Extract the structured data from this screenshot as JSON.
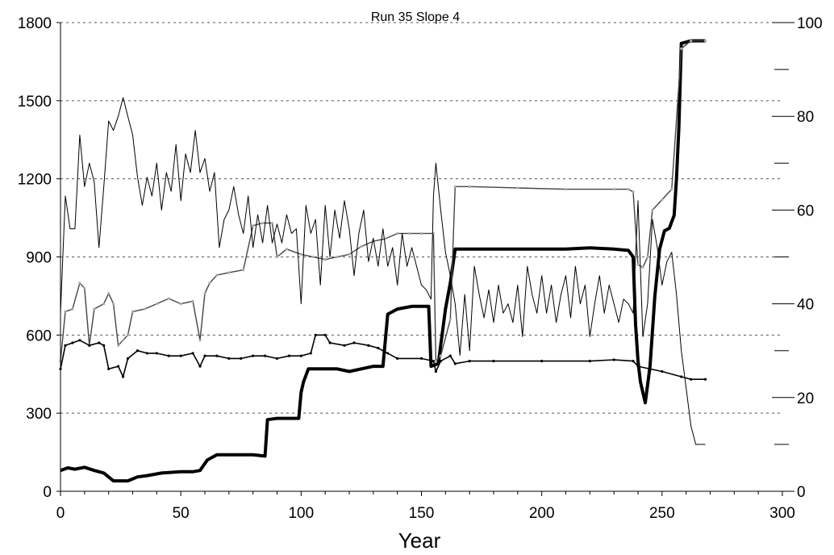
{
  "chart_data": {
    "type": "line",
    "title": "Run 35  Slope 4",
    "xlabel": "Year",
    "ylabel": "",
    "y2label": "",
    "xlim": [
      0,
      300
    ],
    "ylim": [
      0,
      1800
    ],
    "y2lim": [
      0,
      100
    ],
    "x_ticks": [
      "0",
      "50",
      "100",
      "150",
      "200",
      "250",
      "300"
    ],
    "x_tick_values": [
      0,
      50,
      100,
      150,
      200,
      250,
      300
    ],
    "y_ticks": [
      "0",
      "300",
      "600",
      "900",
      "1200",
      "1500",
      "1800"
    ],
    "y_tick_values": [
      0,
      300,
      600,
      900,
      1200,
      1500,
      1800
    ],
    "y2_ticks": [
      "0",
      "20",
      "40",
      "60",
      "80",
      "100"
    ],
    "y2_tick_values": [
      0,
      20,
      40,
      60,
      80,
      100
    ],
    "grid": "horizontal-dashed",
    "series": [
      {
        "axis": "left",
        "style": "thick",
        "points": [
          [
            0,
            80
          ],
          [
            3,
            90
          ],
          [
            6,
            85
          ],
          [
            10,
            92
          ],
          [
            14,
            80
          ],
          [
            18,
            70
          ],
          [
            22,
            40
          ],
          [
            28,
            40
          ],
          [
            32,
            55
          ],
          [
            36,
            60
          ],
          [
            42,
            70
          ],
          [
            50,
            75
          ],
          [
            55,
            75
          ],
          [
            58,
            80
          ],
          [
            61,
            120
          ],
          [
            65,
            140
          ],
          [
            70,
            140
          ],
          [
            75,
            140
          ],
          [
            80,
            140
          ],
          [
            85,
            135
          ],
          [
            86,
            275
          ],
          [
            90,
            280
          ],
          [
            95,
            280
          ],
          [
            99,
            280
          ],
          [
            100,
            380
          ],
          [
            101,
            420
          ],
          [
            103,
            470
          ],
          [
            108,
            470
          ],
          [
            115,
            470
          ],
          [
            120,
            460
          ],
          [
            125,
            470
          ],
          [
            130,
            480
          ],
          [
            134,
            480
          ],
          [
            136,
            680
          ],
          [
            140,
            700
          ],
          [
            146,
            710
          ],
          [
            150,
            710
          ],
          [
            153,
            710
          ],
          [
            154,
            480
          ],
          [
            157,
            490
          ],
          [
            160,
            700
          ],
          [
            162,
            800
          ],
          [
            164,
            930
          ],
          [
            168,
            930
          ],
          [
            180,
            930
          ],
          [
            190,
            930
          ],
          [
            200,
            930
          ],
          [
            210,
            930
          ],
          [
            220,
            935
          ],
          [
            230,
            930
          ],
          [
            236,
            925
          ],
          [
            238,
            900
          ],
          [
            239,
            640
          ],
          [
            240,
            500
          ],
          [
            241,
            420
          ],
          [
            243,
            340
          ],
          [
            245,
            480
          ],
          [
            247,
            750
          ],
          [
            249,
            930
          ],
          [
            251,
            1000
          ],
          [
            253,
            1010
          ],
          [
            255,
            1060
          ],
          [
            256,
            1200
          ],
          [
            257,
            1400
          ],
          [
            258,
            1720
          ],
          [
            262,
            1730
          ],
          [
            268,
            1730
          ]
        ]
      },
      {
        "axis": "left",
        "style": "thin",
        "points": [
          [
            0,
            500
          ],
          [
            2,
            690
          ],
          [
            5,
            700
          ],
          [
            8,
            800
          ],
          [
            10,
            780
          ],
          [
            12,
            560
          ],
          [
            14,
            700
          ],
          [
            18,
            720
          ],
          [
            20,
            760
          ],
          [
            22,
            720
          ],
          [
            24,
            560
          ],
          [
            26,
            580
          ],
          [
            28,
            600
          ],
          [
            30,
            690
          ],
          [
            35,
            700
          ],
          [
            40,
            720
          ],
          [
            45,
            740
          ],
          [
            50,
            720
          ],
          [
            55,
            730
          ],
          [
            58,
            580
          ],
          [
            60,
            760
          ],
          [
            62,
            800
          ],
          [
            65,
            830
          ],
          [
            70,
            840
          ],
          [
            76,
            850
          ],
          [
            80,
            1020
          ],
          [
            84,
            1030
          ],
          [
            88,
            1030
          ],
          [
            90,
            900
          ],
          [
            94,
            930
          ],
          [
            100,
            910
          ],
          [
            105,
            900
          ],
          [
            110,
            890
          ],
          [
            115,
            900
          ],
          [
            120,
            910
          ],
          [
            125,
            940
          ],
          [
            130,
            960
          ],
          [
            135,
            970
          ],
          [
            140,
            990
          ],
          [
            145,
            990
          ],
          [
            150,
            990
          ],
          [
            155,
            990
          ],
          [
            156,
            500
          ],
          [
            158,
            520
          ],
          [
            162,
            660
          ],
          [
            164,
            1170
          ],
          [
            170,
            1170
          ],
          [
            190,
            1165
          ],
          [
            210,
            1160
          ],
          [
            230,
            1160
          ],
          [
            236,
            1160
          ],
          [
            238,
            1150
          ],
          [
            240,
            870
          ],
          [
            242,
            860
          ],
          [
            244,
            900
          ],
          [
            246,
            1080
          ],
          [
            250,
            1120
          ],
          [
            254,
            1160
          ],
          [
            258,
            1700
          ],
          [
            262,
            1730
          ],
          [
            268,
            1730
          ]
        ]
      },
      {
        "axis": "left",
        "style": "thin-markers",
        "points": [
          [
            0,
            470
          ],
          [
            2,
            560
          ],
          [
            5,
            570
          ],
          [
            8,
            580
          ],
          [
            12,
            560
          ],
          [
            16,
            570
          ],
          [
            18,
            560
          ],
          [
            20,
            470
          ],
          [
            24,
            480
          ],
          [
            26,
            440
          ],
          [
            28,
            510
          ],
          [
            32,
            540
          ],
          [
            36,
            530
          ],
          [
            40,
            530
          ],
          [
            45,
            520
          ],
          [
            50,
            520
          ],
          [
            55,
            530
          ],
          [
            58,
            480
          ],
          [
            60,
            520
          ],
          [
            65,
            520
          ],
          [
            70,
            510
          ],
          [
            75,
            510
          ],
          [
            80,
            520
          ],
          [
            85,
            520
          ],
          [
            90,
            510
          ],
          [
            95,
            520
          ],
          [
            100,
            520
          ],
          [
            104,
            530
          ],
          [
            106,
            600
          ],
          [
            110,
            600
          ],
          [
            112,
            570
          ],
          [
            118,
            560
          ],
          [
            122,
            570
          ],
          [
            128,
            560
          ],
          [
            132,
            550
          ],
          [
            136,
            530
          ],
          [
            140,
            510
          ],
          [
            150,
            510
          ],
          [
            155,
            500
          ],
          [
            156,
            460
          ],
          [
            158,
            500
          ],
          [
            162,
            520
          ],
          [
            164,
            490
          ],
          [
            170,
            500
          ],
          [
            180,
            500
          ],
          [
            200,
            500
          ],
          [
            220,
            500
          ],
          [
            230,
            505
          ],
          [
            238,
            500
          ],
          [
            240,
            480
          ],
          [
            250,
            460
          ],
          [
            258,
            440
          ],
          [
            262,
            430
          ],
          [
            268,
            430
          ]
        ]
      },
      {
        "axis": "right",
        "style": "thin-jagged",
        "points": [
          [
            0,
            38
          ],
          [
            2,
            63
          ],
          [
            4,
            56
          ],
          [
            6,
            56
          ],
          [
            8,
            76
          ],
          [
            10,
            65
          ],
          [
            12,
            70
          ],
          [
            14,
            66
          ],
          [
            16,
            52
          ],
          [
            18,
            65
          ],
          [
            20,
            79
          ],
          [
            22,
            77
          ],
          [
            24,
            80
          ],
          [
            26,
            84
          ],
          [
            28,
            80
          ],
          [
            30,
            76
          ],
          [
            32,
            67
          ],
          [
            34,
            61
          ],
          [
            36,
            67
          ],
          [
            38,
            63
          ],
          [
            40,
            70
          ],
          [
            42,
            60
          ],
          [
            44,
            68
          ],
          [
            46,
            64
          ],
          [
            48,
            74
          ],
          [
            50,
            62
          ],
          [
            52,
            72
          ],
          [
            54,
            68
          ],
          [
            56,
            77
          ],
          [
            58,
            68
          ],
          [
            60,
            71
          ],
          [
            62,
            64
          ],
          [
            64,
            68
          ],
          [
            66,
            52
          ],
          [
            68,
            58
          ],
          [
            70,
            60
          ],
          [
            72,
            65
          ],
          [
            74,
            59
          ],
          [
            76,
            55
          ],
          [
            78,
            63
          ],
          [
            80,
            52
          ],
          [
            82,
            59
          ],
          [
            84,
            53
          ],
          [
            86,
            61
          ],
          [
            88,
            53
          ],
          [
            90,
            57
          ],
          [
            92,
            53
          ],
          [
            94,
            59
          ],
          [
            96,
            55
          ],
          [
            98,
            56
          ],
          [
            100,
            40
          ],
          [
            102,
            61
          ],
          [
            104,
            55
          ],
          [
            106,
            58
          ],
          [
            108,
            44
          ],
          [
            110,
            61
          ],
          [
            112,
            50
          ],
          [
            114,
            60
          ],
          [
            116,
            54
          ],
          [
            118,
            62
          ],
          [
            120,
            56
          ],
          [
            122,
            46
          ],
          [
            124,
            55
          ],
          [
            126,
            60
          ],
          [
            128,
            49
          ],
          [
            130,
            54
          ],
          [
            132,
            48
          ],
          [
            134,
            56
          ],
          [
            136,
            48
          ],
          [
            138,
            52
          ],
          [
            140,
            44
          ],
          [
            142,
            55
          ],
          [
            144,
            48
          ],
          [
            146,
            52
          ],
          [
            148,
            48
          ],
          [
            150,
            44
          ],
          [
            152,
            43
          ],
          [
            154,
            41
          ],
          [
            155,
            63
          ],
          [
            156,
            70
          ],
          [
            158,
            60
          ],
          [
            160,
            51
          ],
          [
            162,
            46
          ],
          [
            164,
            40
          ],
          [
            166,
            29
          ],
          [
            168,
            42
          ],
          [
            170,
            30
          ],
          [
            172,
            48
          ],
          [
            174,
            42
          ],
          [
            176,
            37
          ],
          [
            178,
            43
          ],
          [
            180,
            36
          ],
          [
            182,
            44
          ],
          [
            184,
            38
          ],
          [
            186,
            40
          ],
          [
            188,
            36
          ],
          [
            190,
            44
          ],
          [
            192,
            33
          ],
          [
            194,
            48
          ],
          [
            196,
            42
          ],
          [
            198,
            38
          ],
          [
            200,
            46
          ],
          [
            202,
            38
          ],
          [
            204,
            44
          ],
          [
            206,
            36
          ],
          [
            208,
            42
          ],
          [
            210,
            46
          ],
          [
            212,
            37
          ],
          [
            214,
            48
          ],
          [
            216,
            40
          ],
          [
            218,
            44
          ],
          [
            220,
            33
          ],
          [
            222,
            40
          ],
          [
            224,
            46
          ],
          [
            226,
            38
          ],
          [
            228,
            44
          ],
          [
            230,
            40
          ],
          [
            232,
            36
          ],
          [
            234,
            41
          ],
          [
            236,
            40
          ],
          [
            238,
            38
          ],
          [
            240,
            62
          ],
          [
            242,
            33
          ],
          [
            244,
            40
          ],
          [
            246,
            58
          ],
          [
            248,
            52
          ],
          [
            250,
            44
          ],
          [
            252,
            49
          ],
          [
            254,
            51
          ],
          [
            256,
            42
          ],
          [
            258,
            30
          ],
          [
            260,
            22
          ],
          [
            262,
            14
          ],
          [
            264,
            10
          ],
          [
            266,
            10
          ],
          [
            268,
            10
          ]
        ]
      }
    ]
  }
}
